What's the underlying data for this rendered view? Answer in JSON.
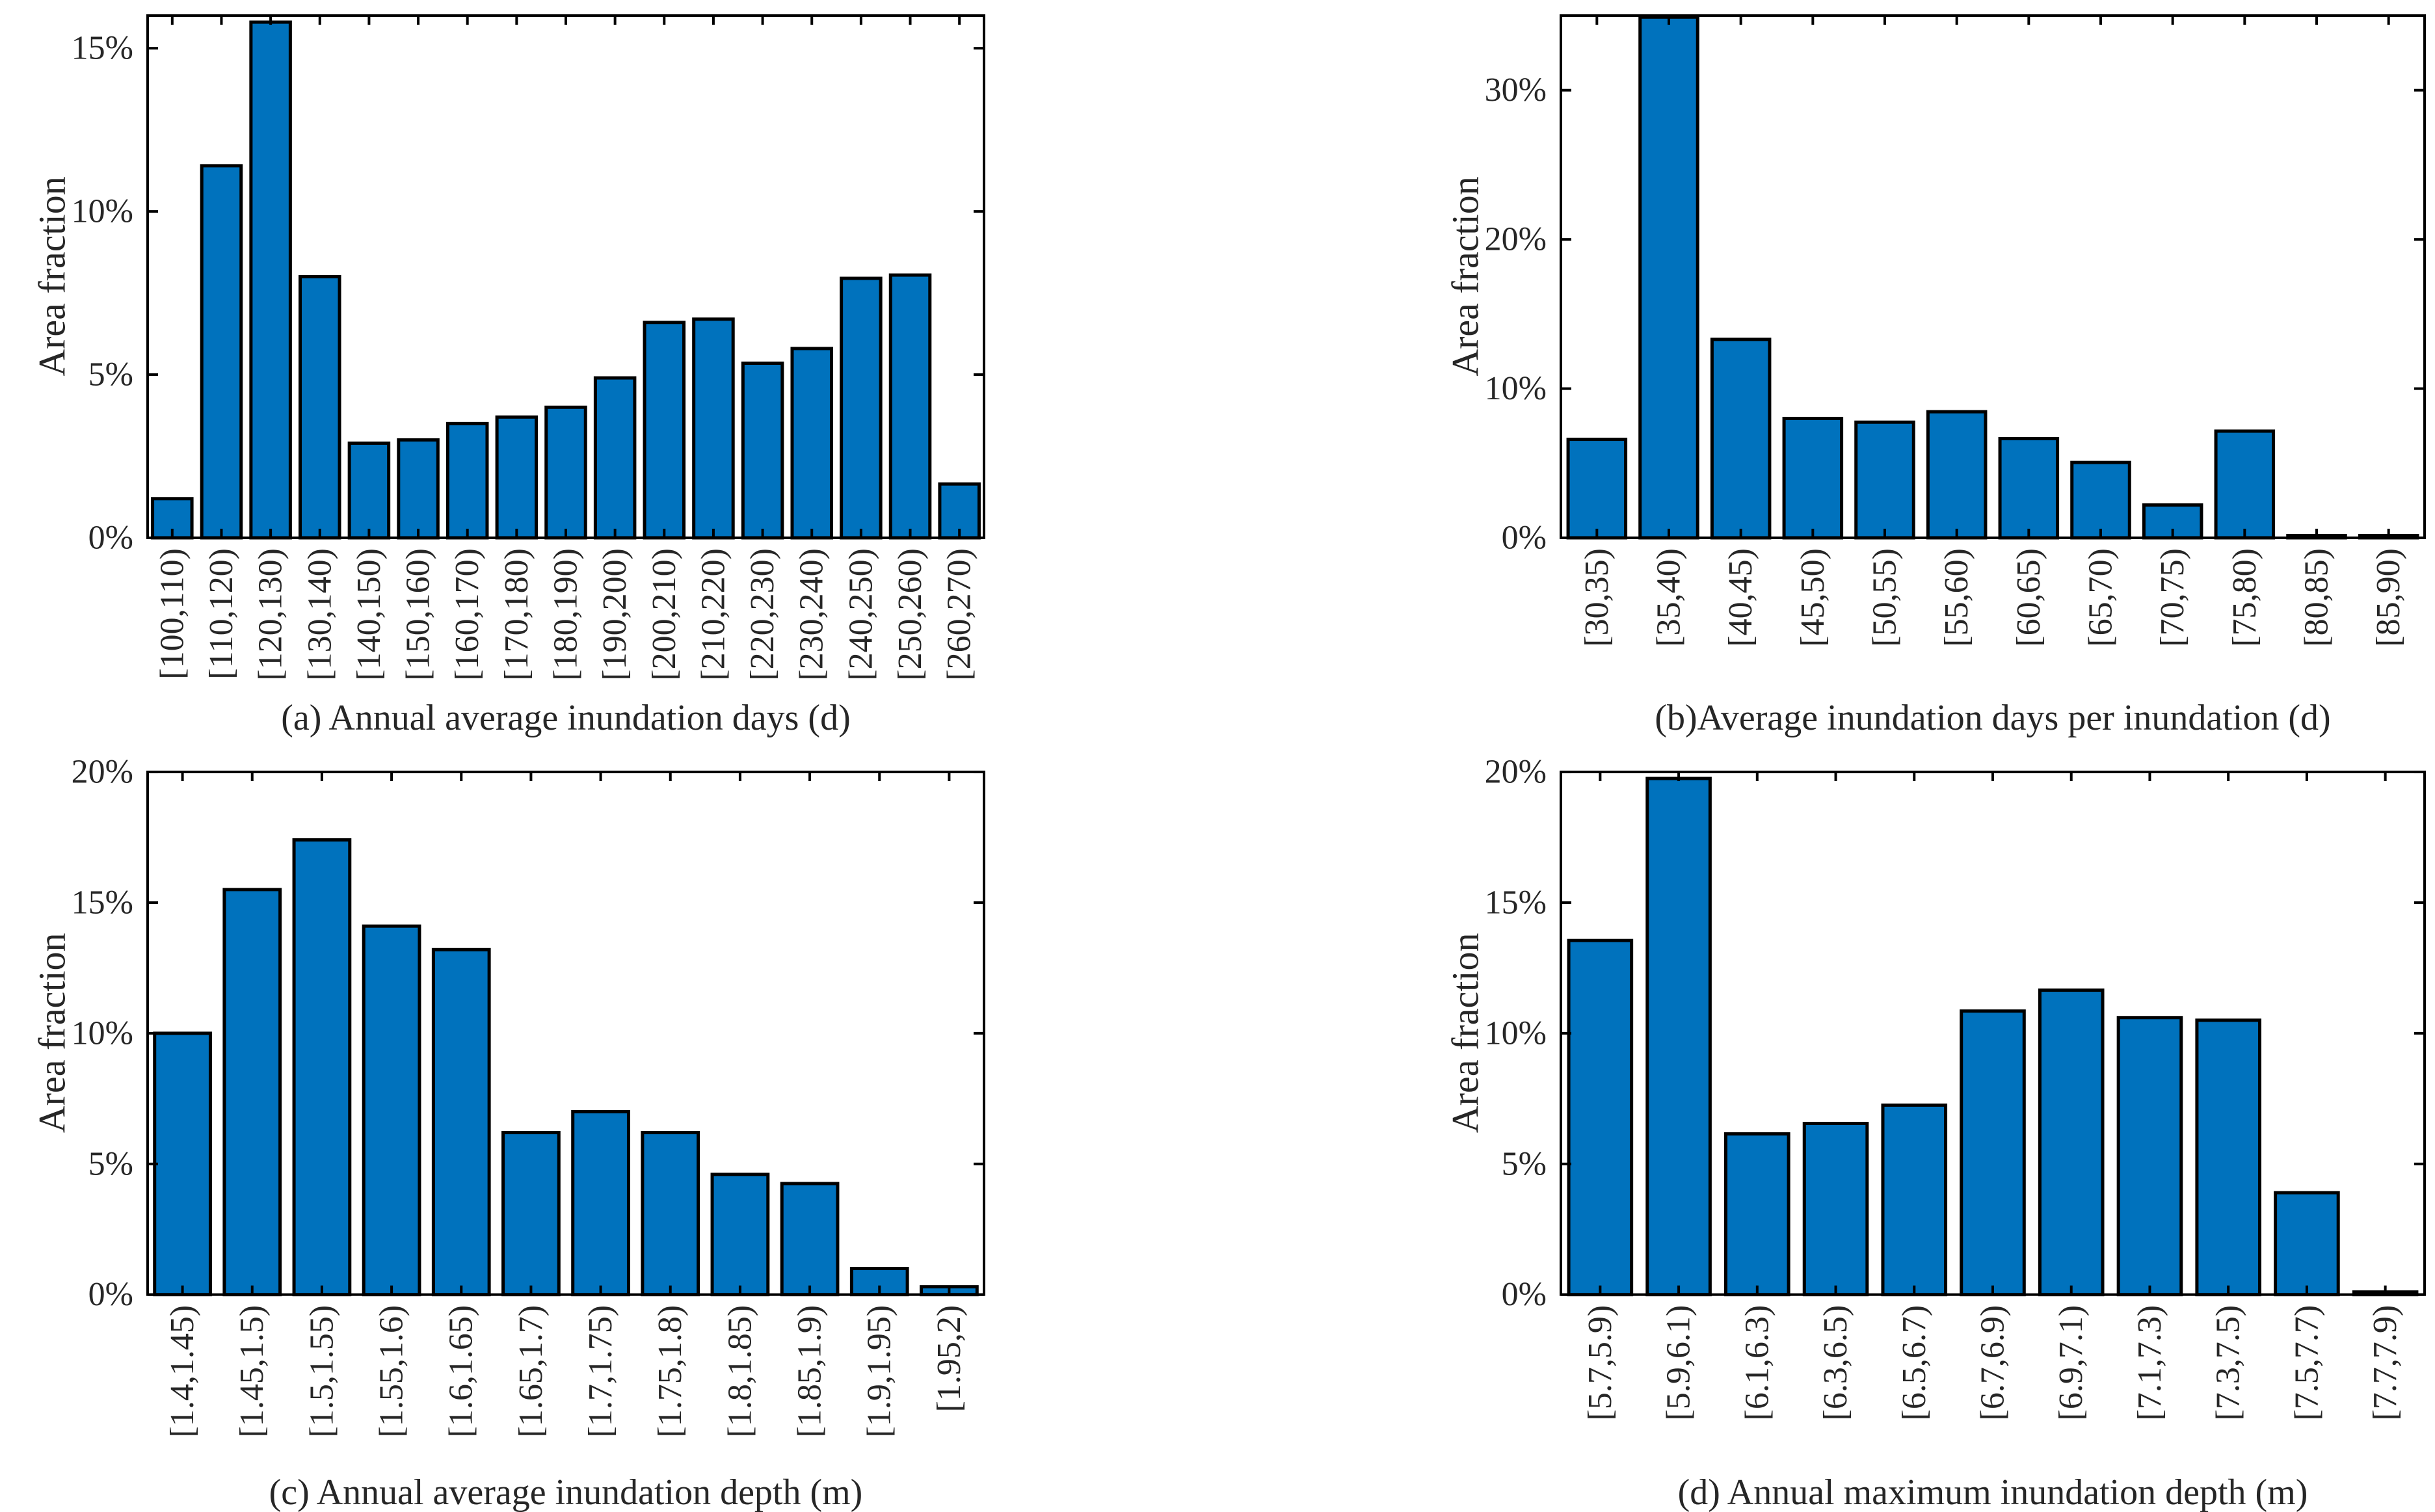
{
  "page": {
    "background": "#ffffff"
  },
  "styles": {
    "bar_fill": "#0072BD",
    "bar_stroke": "#000000",
    "axis_color": "#000000",
    "text_color": "#262626"
  },
  "chart_data": [
    {
      "id": "a",
      "type": "bar",
      "caption": "(a) Annual average inundation days (d)",
      "ylabel": "Area fraction",
      "categories": [
        "[100,110)",
        "[110,120)",
        "[120,130)",
        "[130,140)",
        "[140,150)",
        "[150,160)",
        "[160,170)",
        "[170,180)",
        "[180,190)",
        "[190,200)",
        "[200,210)",
        "[210,220)",
        "[220,230)",
        "[230,240)",
        "[240,250)",
        "[250,260)",
        "[260,270)"
      ],
      "values": [
        1.2,
        11.4,
        15.8,
        8.0,
        2.9,
        3.0,
        3.5,
        3.7,
        4.0,
        4.9,
        6.6,
        6.7,
        5.35,
        5.8,
        7.95,
        8.05,
        1.65
      ],
      "ylim": [
        0,
        16
      ],
      "yticks": [
        0,
        5,
        10,
        15
      ],
      "ytick_suffix": "%",
      "grid": false,
      "legend": null
    },
    {
      "id": "b",
      "type": "bar",
      "caption": "(b)Average inundation days per inundation (d)",
      "ylabel": "Area fraction",
      "categories": [
        "[30,35)",
        "[35,40)",
        "[40,45)",
        "[45,50)",
        "[50,55)",
        "[55,60)",
        "[60,65)",
        "[65,70)",
        "[70,75)",
        "[75,80)",
        "[80,85)",
        "[85,90)"
      ],
      "values": [
        6.6,
        34.9,
        13.3,
        8.0,
        7.75,
        8.45,
        6.65,
        5.05,
        2.2,
        7.15,
        0.15,
        0.15
      ],
      "ylim": [
        0,
        35
      ],
      "yticks": [
        0,
        10,
        20,
        30
      ],
      "ytick_suffix": "%",
      "grid": false,
      "legend": null
    },
    {
      "id": "c",
      "type": "bar",
      "caption": "(c) Annual average inundation depth (m)",
      "ylabel": "Area fraction",
      "categories": [
        "[1.4,1.45)",
        "[1.45,1.5)",
        "[1.5,1.55)",
        "[1.55,1.6)",
        "[1.6,1.65)",
        "[1.65,1.7)",
        "[1.7,1.75)",
        "[1.75,1.8)",
        "[1.8,1.85)",
        "[1.85,1.9)",
        "[1.9,1.95)",
        "[1.95,2)"
      ],
      "values": [
        10.0,
        15.5,
        17.4,
        14.1,
        13.2,
        6.2,
        7.0,
        6.2,
        4.6,
        4.25,
        1.0,
        0.3
      ],
      "ylim": [
        0,
        20
      ],
      "yticks": [
        0,
        5,
        10,
        15,
        20
      ],
      "ytick_suffix": "%",
      "grid": false,
      "legend": null
    },
    {
      "id": "d",
      "type": "bar",
      "caption": "(d) Annual maximum inundation depth (m)",
      "ylabel": "Area fraction",
      "categories": [
        "[5.7,5.9)",
        "[5.9,6.1)",
        "[6.1,6.3)",
        "[6.3,6.5)",
        "[6.5,6.7)",
        "[6.7,6.9)",
        "[6.9,7.1)",
        "[7.1,7.3)",
        "[7.3,7.5)",
        "[7.5,7.7)",
        "[7.7,7.9)"
      ],
      "values": [
        13.55,
        19.75,
        6.15,
        6.55,
        7.25,
        10.85,
        11.65,
        10.6,
        10.5,
        3.9,
        0.1
      ],
      "ylim": [
        0,
        20
      ],
      "yticks": [
        0,
        5,
        10,
        15,
        20
      ],
      "ytick_suffix": "%",
      "grid": false,
      "legend": null
    }
  ]
}
